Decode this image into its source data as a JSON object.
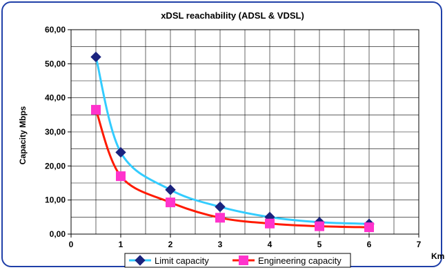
{
  "chart_data": {
    "type": "line",
    "title": "xDSL reachability (ADSL & VDSL)",
    "xlabel": "Km",
    "ylabel": "Capacity Mbps",
    "xlim": [
      0,
      7
    ],
    "ylim": [
      0,
      60
    ],
    "x_ticks": [
      "0",
      "1",
      "2",
      "3",
      "4",
      "5",
      "6",
      "7"
    ],
    "y_ticks": [
      "0,00",
      "10,00",
      "20,00",
      "30,00",
      "40,00",
      "50,00",
      "60,00"
    ],
    "grid": true,
    "legend_position": "bottom",
    "series": [
      {
        "name": "Limit capacity",
        "line_color": "#33ccff",
        "marker_color": "#1a237e",
        "marker": "diamond",
        "x": [
          0.5,
          1,
          2,
          3,
          4,
          5,
          6
        ],
        "y": [
          52,
          24,
          13,
          8,
          5,
          3.5,
          3
        ]
      },
      {
        "name": "Engineering capacity",
        "line_color": "#ff1a00",
        "marker_color": "#ff33cc",
        "marker": "square",
        "x": [
          0.5,
          1,
          2,
          3,
          4,
          5,
          6
        ],
        "y": [
          36.5,
          17,
          9.3,
          4.8,
          3.1,
          2.3,
          2
        ]
      }
    ]
  }
}
